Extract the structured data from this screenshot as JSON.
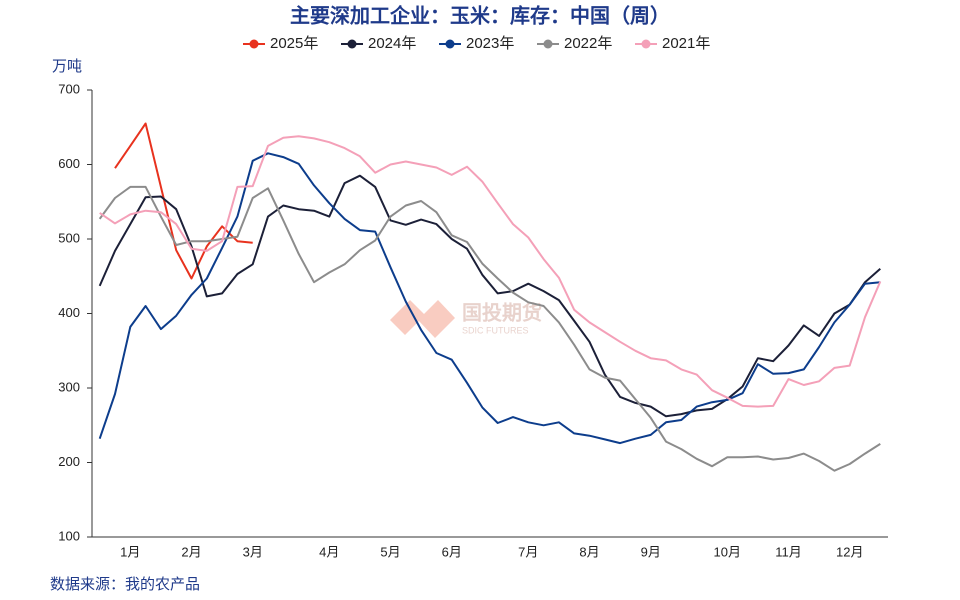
{
  "chart_data": {
    "type": "line",
    "title": "主要深加工企业：玉米：库存：中国（周）",
    "y_axis_label": "万吨",
    "source": "数据来源：我的农产品",
    "watermark": "国投期货",
    "watermark_sub": "SDIC FUTURES",
    "categories": [
      null,
      null,
      "1月",
      null,
      null,
      null,
      "2月",
      null,
      null,
      null,
      "3月",
      null,
      null,
      null,
      null,
      "4月",
      null,
      null,
      null,
      "5月",
      null,
      null,
      null,
      "6月",
      null,
      null,
      null,
      null,
      "7月",
      null,
      null,
      null,
      "8月",
      null,
      null,
      null,
      "9月",
      null,
      null,
      null,
      null,
      "10月",
      null,
      null,
      null,
      "11月",
      null,
      null,
      null,
      "12月",
      null,
      null
    ],
    "ylim": [
      100,
      700
    ],
    "yticks": [
      100,
      200,
      300,
      400,
      500,
      600,
      700
    ],
    "series": [
      {
        "name": "2025年",
        "color": "#e8321e",
        "values": [
          null,
          595,
          625,
          655,
          570,
          485,
          447,
          490,
          517,
          497,
          495,
          null,
          null,
          null,
          null,
          null,
          null,
          null,
          null,
          null,
          null,
          null,
          null,
          null,
          null,
          null,
          null,
          null,
          null,
          null,
          null,
          null,
          null,
          null,
          null,
          null,
          null,
          null,
          null,
          null,
          null,
          null,
          null,
          null,
          null,
          null,
          null,
          null,
          null,
          null,
          null,
          null
        ]
      },
      {
        "name": "2024年",
        "color": "#1c2038",
        "values": [
          437,
          484,
          520,
          556,
          557,
          540,
          490,
          423,
          427,
          453,
          466,
          530,
          545,
          540,
          538,
          530,
          575,
          585,
          570,
          525,
          519,
          526,
          520,
          500,
          487,
          452,
          427,
          430,
          440,
          430,
          418,
          390,
          362,
          318,
          288,
          280,
          275,
          262,
          265,
          270,
          272,
          285,
          302,
          340,
          336,
          357,
          384,
          370,
          400,
          412,
          442,
          460
        ]
      },
      {
        "name": "2023年",
        "color": "#0d3d8c",
        "values": [
          232,
          292,
          382,
          410,
          379,
          397,
          425,
          447,
          488,
          530,
          605,
          615,
          610,
          601,
          572,
          548,
          527,
          512,
          510,
          462,
          416,
          378,
          347,
          338,
          307,
          274,
          253,
          261,
          254,
          250,
          254,
          239,
          236,
          231,
          226,
          232,
          237,
          254,
          257,
          275,
          281,
          284,
          293,
          332,
          319,
          320,
          325,
          355,
          388,
          412,
          440,
          442
        ]
      },
      {
        "name": "2022年",
        "color": "#8c8c8c",
        "values": [
          527,
          555,
          570,
          570,
          530,
          492,
          497,
          497,
          500,
          503,
          555,
          568,
          525,
          480,
          442,
          455,
          466,
          485,
          498,
          530,
          545,
          551,
          536,
          505,
          496,
          467,
          447,
          428,
          415,
          410,
          388,
          358,
          325,
          314,
          310,
          285,
          260,
          228,
          218,
          205,
          195,
          207,
          207,
          208,
          204,
          206,
          212,
          202,
          189,
          198,
          212,
          225
        ]
      },
      {
        "name": "2021年",
        "color": "#f4a0b8",
        "values": [
          535,
          521,
          533,
          538,
          536,
          520,
          487,
          484,
          497,
          570,
          571,
          625,
          636,
          638,
          635,
          630,
          622,
          611,
          589,
          600,
          604,
          600,
          596,
          586,
          597,
          577,
          548,
          520,
          502,
          473,
          448,
          405,
          388,
          375,
          362,
          350,
          340,
          337,
          325,
          318,
          297,
          287,
          276,
          275,
          276,
          312,
          304,
          309,
          327,
          330,
          395,
          443
        ]
      }
    ]
  }
}
